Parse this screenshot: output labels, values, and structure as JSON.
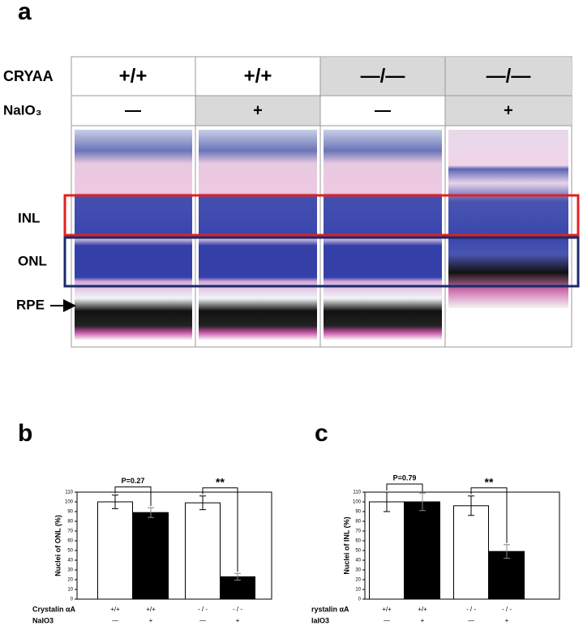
{
  "panel_a": {
    "label": "a",
    "rows": [
      {
        "name": "CRYAA",
        "cells": [
          "+/+",
          "+/+",
          "—/—",
          "—/—"
        ]
      },
      {
        "name": "NaIO₃",
        "cells": [
          "—",
          "+",
          "—",
          "+"
        ]
      }
    ],
    "layers": [
      "INL",
      "ONL",
      "RPE"
    ]
  },
  "chart_data": [
    {
      "type": "bar",
      "panel_label": "b",
      "ylabel": "Nuclei of ONL (%)",
      "values": [
        100,
        89,
        99,
        23
      ],
      "errors": [
        7,
        5,
        7,
        3.5
      ],
      "colors": [
        "#ffffff",
        "#000000",
        "#ffffff",
        "#000000"
      ],
      "ylim": [
        0,
        110
      ],
      "yticks": [
        0,
        10,
        20,
        30,
        40,
        50,
        60,
        70,
        80,
        90,
        100,
        110
      ],
      "x_label_rows": [
        {
          "name": "Crystalin αA",
          "labels": [
            "+/+",
            "+/+",
            "- / -",
            "- / -"
          ]
        },
        {
          "name": "NaIO3",
          "labels": [
            "—",
            "+",
            "—",
            "+"
          ]
        }
      ],
      "annotations": [
        "P=0.27",
        "**"
      ]
    },
    {
      "type": "bar",
      "panel_label": "c",
      "ylabel": "Nuclei of INL (%)",
      "values": [
        100,
        100,
        96,
        49
      ],
      "errors": [
        10,
        9,
        10,
        7
      ],
      "colors": [
        "#ffffff",
        "#000000",
        "#ffffff",
        "#000000"
      ],
      "ylim": [
        0,
        110
      ],
      "yticks": [
        0,
        10,
        20,
        30,
        40,
        50,
        60,
        70,
        80,
        90,
        100,
        110
      ],
      "x_label_rows": [
        {
          "name": "rystalin αA",
          "labels": [
            "+/+",
            "+/+",
            "- / -",
            "- / -"
          ]
        },
        {
          "name": "laIO3",
          "labels": [
            "—",
            "+",
            "—",
            "+"
          ]
        }
      ],
      "annotations": [
        "P=0.79",
        "**"
      ]
    }
  ]
}
